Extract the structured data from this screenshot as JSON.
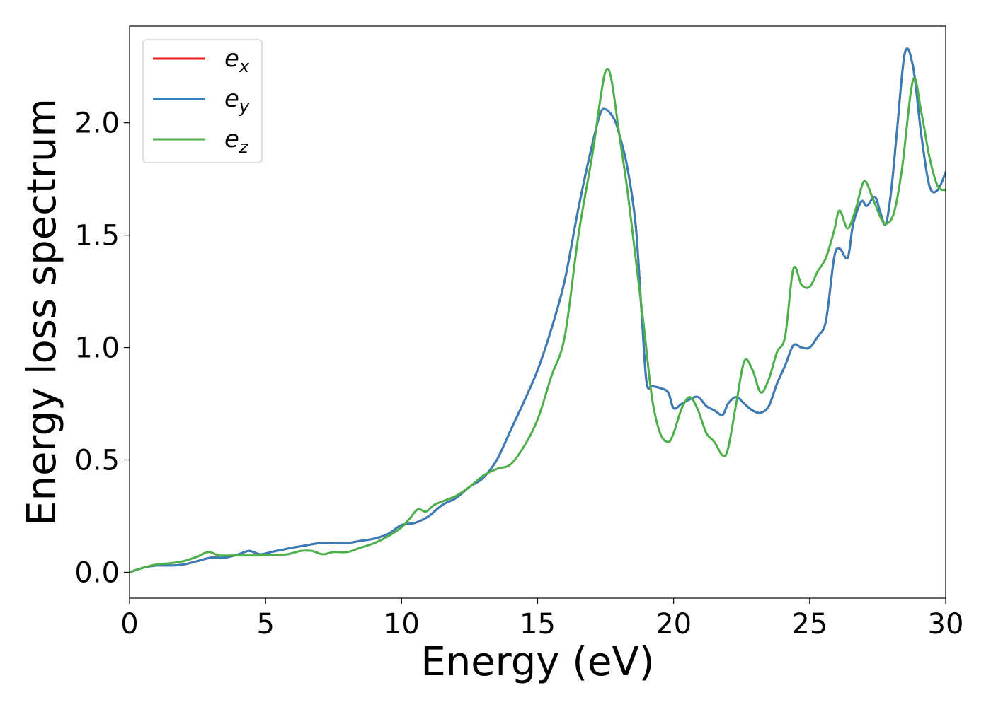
{
  "chart_data": {
    "type": "line",
    "title": "",
    "xlabel": "Energy (eV)",
    "ylabel": "Energy loss spectrum",
    "xlim": [
      0,
      30
    ],
    "ylim": [
      -0.115,
      2.43
    ],
    "xticks": [
      0,
      5,
      10,
      15,
      20,
      25,
      30
    ],
    "xtick_labels": [
      "0",
      "5",
      "10",
      "15",
      "20",
      "25",
      "30"
    ],
    "yticks": [
      0.0,
      0.5,
      1.0,
      1.5,
      2.0
    ],
    "ytick_labels": [
      "0.0",
      "0.5",
      "1.0",
      "1.5",
      "2.0"
    ],
    "grid": false,
    "legend_position": "top-left",
    "series": [
      {
        "name": "e_x",
        "label_base": "e",
        "label_sub": "x",
        "color": "#e41a1c",
        "x": [
          0,
          0.5,
          1,
          1.5,
          2,
          2.5,
          3,
          3.5,
          4,
          4.4,
          4.8,
          5.2,
          5.6,
          6,
          6.5,
          7,
          7.5,
          8,
          8.5,
          9,
          9.5,
          10,
          10.5,
          11,
          11.5,
          12,
          12.5,
          13,
          13.5,
          14,
          14.5,
          15,
          15.5,
          16,
          16.5,
          17,
          17.3,
          17.5,
          17.8,
          18,
          18.3,
          18.6,
          18.8,
          19,
          19.2,
          19.5,
          19.8,
          20,
          20.3,
          20.6,
          20.9,
          21.2,
          21.5,
          21.8,
          22,
          22.3,
          22.6,
          22.9,
          23.2,
          23.5,
          23.8,
          24.1,
          24.4,
          24.7,
          25,
          25.3,
          25.6,
          25.9,
          26.1,
          26.4,
          26.6,
          26.9,
          27.1,
          27.4,
          27.6,
          27.8,
          28,
          28.2,
          28.5,
          28.8,
          29.1,
          29.4,
          29.7,
          30
        ],
        "y": [
          0.0,
          0.02,
          0.03,
          0.03,
          0.035,
          0.05,
          0.065,
          0.065,
          0.08,
          0.095,
          0.08,
          0.09,
          0.1,
          0.11,
          0.12,
          0.13,
          0.13,
          0.13,
          0.14,
          0.15,
          0.17,
          0.21,
          0.22,
          0.25,
          0.3,
          0.33,
          0.38,
          0.42,
          0.5,
          0.63,
          0.76,
          0.9,
          1.08,
          1.3,
          1.62,
          1.9,
          2.04,
          2.06,
          2.02,
          1.95,
          1.8,
          1.55,
          1.2,
          0.85,
          0.83,
          0.82,
          0.8,
          0.73,
          0.75,
          0.77,
          0.78,
          0.74,
          0.72,
          0.7,
          0.75,
          0.78,
          0.75,
          0.72,
          0.71,
          0.74,
          0.84,
          0.92,
          1.01,
          1.0,
          1.0,
          1.05,
          1.12,
          1.4,
          1.44,
          1.4,
          1.55,
          1.65,
          1.63,
          1.67,
          1.6,
          1.55,
          1.7,
          1.95,
          2.31,
          2.25,
          1.95,
          1.72,
          1.7,
          1.78
        ]
      },
      {
        "name": "e_y",
        "label_base": "e",
        "label_sub": "y",
        "color": "#377eb8",
        "x": [
          0,
          0.5,
          1,
          1.5,
          2,
          2.5,
          3,
          3.5,
          4,
          4.4,
          4.8,
          5.2,
          5.6,
          6,
          6.5,
          7,
          7.5,
          8,
          8.5,
          9,
          9.5,
          10,
          10.5,
          11,
          11.5,
          12,
          12.5,
          13,
          13.5,
          14,
          14.5,
          15,
          15.5,
          16,
          16.5,
          17,
          17.3,
          17.5,
          17.8,
          18,
          18.3,
          18.6,
          18.8,
          19,
          19.2,
          19.5,
          19.8,
          20,
          20.3,
          20.6,
          20.9,
          21.2,
          21.5,
          21.8,
          22,
          22.3,
          22.6,
          22.9,
          23.2,
          23.5,
          23.8,
          24.1,
          24.4,
          24.7,
          25,
          25.3,
          25.6,
          25.9,
          26.1,
          26.4,
          26.6,
          26.9,
          27.1,
          27.4,
          27.6,
          27.8,
          28,
          28.2,
          28.5,
          28.8,
          29.1,
          29.4,
          29.7,
          30
        ],
        "y": [
          0.0,
          0.02,
          0.03,
          0.03,
          0.035,
          0.05,
          0.065,
          0.065,
          0.08,
          0.095,
          0.08,
          0.09,
          0.1,
          0.11,
          0.12,
          0.13,
          0.13,
          0.13,
          0.14,
          0.15,
          0.17,
          0.21,
          0.22,
          0.25,
          0.3,
          0.33,
          0.38,
          0.42,
          0.5,
          0.63,
          0.76,
          0.9,
          1.08,
          1.3,
          1.62,
          1.9,
          2.04,
          2.06,
          2.02,
          1.95,
          1.8,
          1.55,
          1.2,
          0.85,
          0.83,
          0.82,
          0.8,
          0.73,
          0.75,
          0.77,
          0.78,
          0.74,
          0.72,
          0.7,
          0.75,
          0.78,
          0.75,
          0.72,
          0.71,
          0.74,
          0.84,
          0.92,
          1.01,
          1.0,
          1.0,
          1.05,
          1.12,
          1.4,
          1.44,
          1.4,
          1.55,
          1.65,
          1.63,
          1.67,
          1.6,
          1.55,
          1.7,
          1.95,
          2.31,
          2.25,
          1.95,
          1.72,
          1.7,
          1.78
        ]
      },
      {
        "name": "e_z",
        "label_base": "e",
        "label_sub": "z",
        "color": "#4daf4a",
        "x": [
          0,
          0.5,
          1,
          1.5,
          2,
          2.5,
          2.9,
          3.3,
          3.8,
          4.3,
          4.8,
          5.3,
          5.8,
          6.3,
          6.7,
          7.1,
          7.5,
          8,
          8.5,
          9,
          9.5,
          10,
          10.3,
          10.6,
          10.9,
          11.2,
          11.6,
          12,
          12.5,
          13,
          13.5,
          14,
          14.5,
          15,
          15.5,
          16,
          16.5,
          17,
          17.3,
          17.5,
          17.7,
          18,
          18.3,
          18.6,
          18.9,
          19.2,
          19.5,
          19.8,
          20,
          20.3,
          20.6,
          20.9,
          21.2,
          21.5,
          21.8,
          22,
          22.3,
          22.6,
          22.9,
          23.2,
          23.5,
          23.8,
          24.1,
          24.4,
          24.7,
          25,
          25.3,
          25.6,
          25.9,
          26.1,
          26.4,
          26.7,
          27,
          27.3,
          27.6,
          27.8,
          28.1,
          28.4,
          28.8,
          29.1,
          29.4,
          29.7,
          30
        ],
        "y": [
          0.0,
          0.02,
          0.035,
          0.04,
          0.05,
          0.07,
          0.09,
          0.075,
          0.075,
          0.075,
          0.075,
          0.078,
          0.08,
          0.095,
          0.095,
          0.08,
          0.09,
          0.09,
          0.11,
          0.13,
          0.16,
          0.2,
          0.24,
          0.28,
          0.27,
          0.3,
          0.32,
          0.34,
          0.38,
          0.43,
          0.46,
          0.48,
          0.56,
          0.68,
          0.87,
          1.05,
          1.5,
          1.85,
          2.1,
          2.23,
          2.2,
          1.95,
          1.7,
          1.4,
          1.1,
          0.78,
          0.62,
          0.58,
          0.62,
          0.73,
          0.78,
          0.72,
          0.62,
          0.58,
          0.52,
          0.55,
          0.75,
          0.94,
          0.9,
          0.8,
          0.86,
          0.98,
          1.05,
          1.35,
          1.28,
          1.27,
          1.34,
          1.4,
          1.52,
          1.61,
          1.53,
          1.62,
          1.74,
          1.67,
          1.58,
          1.55,
          1.6,
          1.8,
          2.19,
          2.05,
          1.85,
          1.72,
          1.7
        ]
      }
    ]
  }
}
